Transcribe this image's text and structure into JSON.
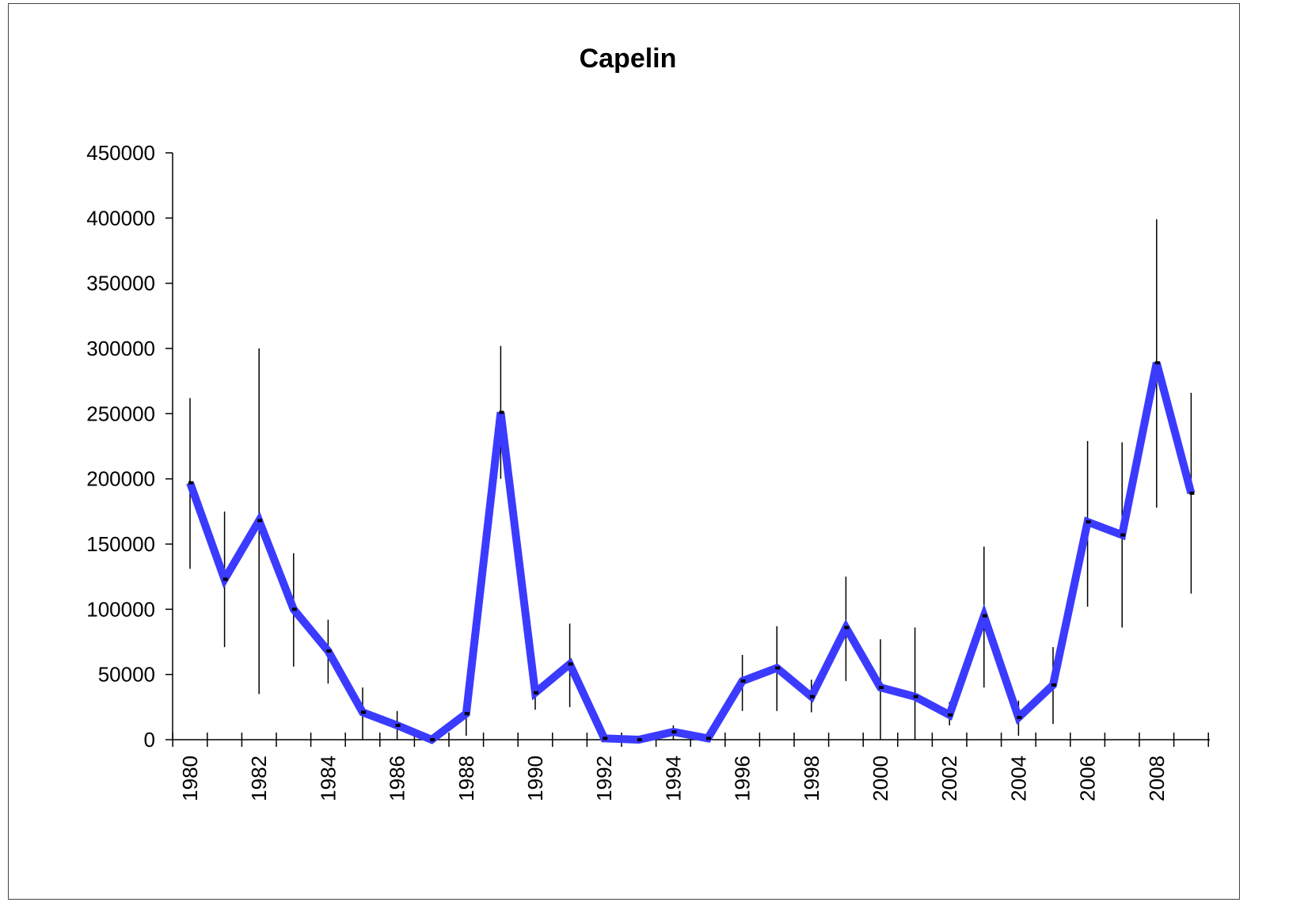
{
  "chart_data": {
    "type": "line",
    "title": "Capelin",
    "xlabel": "",
    "ylabel": "",
    "ylim": [
      0,
      450000
    ],
    "y_ticks": [
      "0",
      "50000",
      "100000",
      "150000",
      "200000",
      "250000",
      "300000",
      "350000",
      "400000",
      "450000"
    ],
    "x_tick_labels": [
      "1980",
      "1982",
      "1984",
      "1986",
      "1988",
      "1990",
      "1992",
      "1994",
      "1996",
      "1998",
      "2000",
      "2002",
      "2004",
      "2006",
      "2008"
    ],
    "grid": false,
    "legend": "none",
    "line_color": "#3b3bff",
    "x": [
      1980,
      1981,
      1982,
      1983,
      1984,
      1985,
      1986,
      1987,
      1988,
      1989,
      1990,
      1991,
      1992,
      1993,
      1994,
      1995,
      1996,
      1997,
      1998,
      1999,
      2000,
      2001,
      2002,
      2003,
      2004,
      2005,
      2006,
      2007,
      2008,
      2009
    ],
    "series": [
      {
        "values": [
          197000,
          123000,
          168000,
          100000,
          68000,
          21000,
          11000,
          0,
          20000,
          251000,
          36000,
          58000,
          1000,
          0,
          6000,
          1000,
          45000,
          55000,
          33000,
          86000,
          40000,
          33000,
          19000,
          95000,
          17000,
          42000,
          167000,
          157000,
          289000,
          189000
        ],
        "error_low": [
          131000,
          71000,
          35000,
          56000,
          43000,
          0,
          0,
          0,
          3000,
          200000,
          23000,
          25000,
          0,
          0,
          0,
          0,
          22000,
          22000,
          21000,
          45000,
          0,
          0,
          11000,
          40000,
          3000,
          12000,
          102000,
          86000,
          178000,
          112000
        ],
        "error_high": [
          262000,
          175000,
          300000,
          143000,
          92000,
          40000,
          22000,
          0,
          36000,
          302000,
          37000,
          89000,
          5000,
          1000,
          11000,
          1000,
          65000,
          87000,
          46000,
          125000,
          77000,
          86000,
          29000,
          148000,
          30000,
          71000,
          229000,
          228000,
          399000,
          266000
        ]
      }
    ]
  }
}
